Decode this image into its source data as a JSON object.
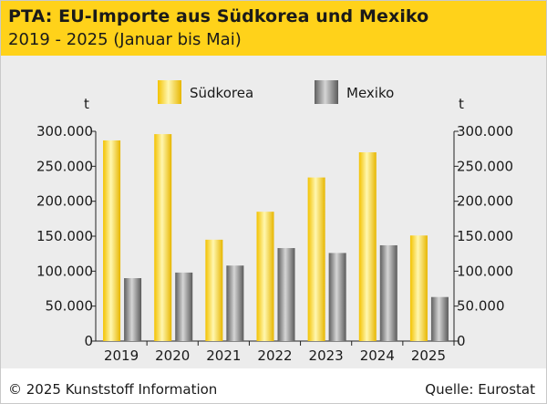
{
  "chart_data": {
    "type": "bar",
    "title": "PTA: EU-Importe aus Südkorea und Mexiko",
    "subtitle": "2019 - 2025 (Januar bis Mai)",
    "unit_left": "t",
    "unit_right": "t",
    "categories": [
      "2019",
      "2020",
      "2021",
      "2022",
      "2023",
      "2024",
      "2025"
    ],
    "series": [
      {
        "name": "Südkorea",
        "values": [
          287000,
          296000,
          145000,
          185000,
          234000,
          270000,
          151000
        ],
        "color": "#f5c400"
      },
      {
        "name": "Mexiko",
        "values": [
          90000,
          98000,
          108000,
          133000,
          126000,
          137000,
          63000
        ],
        "color": "#7a7a7a"
      }
    ],
    "ylim": [
      0,
      300000
    ],
    "yticks": [
      0,
      50000,
      100000,
      150000,
      200000,
      250000,
      300000
    ],
    "ytick_labels": [
      "0",
      "50.000",
      "100.000",
      "150.000",
      "200.000",
      "250.000",
      "300.000"
    ],
    "legend_position": "top-center",
    "grid": false
  },
  "footer": {
    "copyright": "© 2025 Kunststoff Information",
    "source": "Quelle: Eurostat"
  }
}
